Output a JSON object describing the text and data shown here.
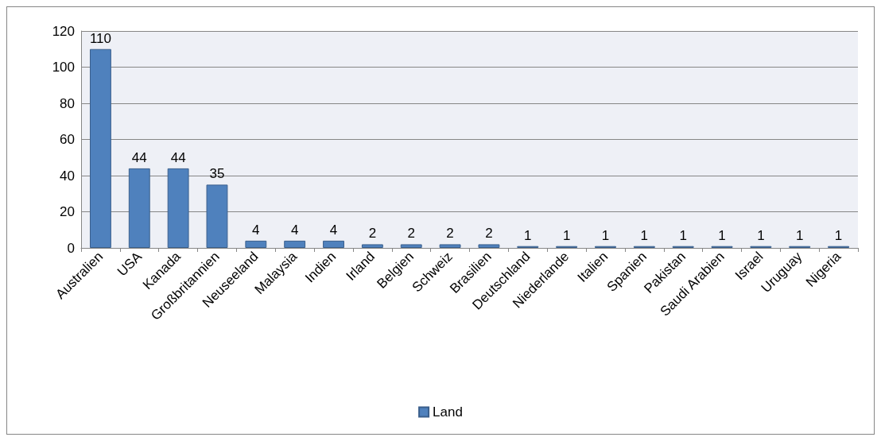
{
  "chart_data": {
    "type": "bar",
    "categories": [
      "Australien",
      "USA",
      "Kanada",
      "Großbritannien",
      "Neuseeland",
      "Malaysia",
      "Indien",
      "Irland",
      "Belgien",
      "Schweiz",
      "Brasilien",
      "Deutschland",
      "Niederlande",
      "Italien",
      "Spanien",
      "Pakistan",
      "Saudi Arabien",
      "Israel",
      "Uruguay",
      "Nigeria"
    ],
    "series": [
      {
        "name": "Land",
        "color": "#4f81bd",
        "values": [
          110,
          44,
          44,
          35,
          4,
          4,
          4,
          2,
          2,
          2,
          2,
          1,
          1,
          1,
          1,
          1,
          1,
          1,
          1,
          1
        ]
      }
    ],
    "ylim": [
      0,
      120
    ],
    "yticks": [
      0,
      20,
      40,
      60,
      80,
      100,
      120
    ],
    "grid": "y",
    "legend": "bottom",
    "data_labels": true
  }
}
